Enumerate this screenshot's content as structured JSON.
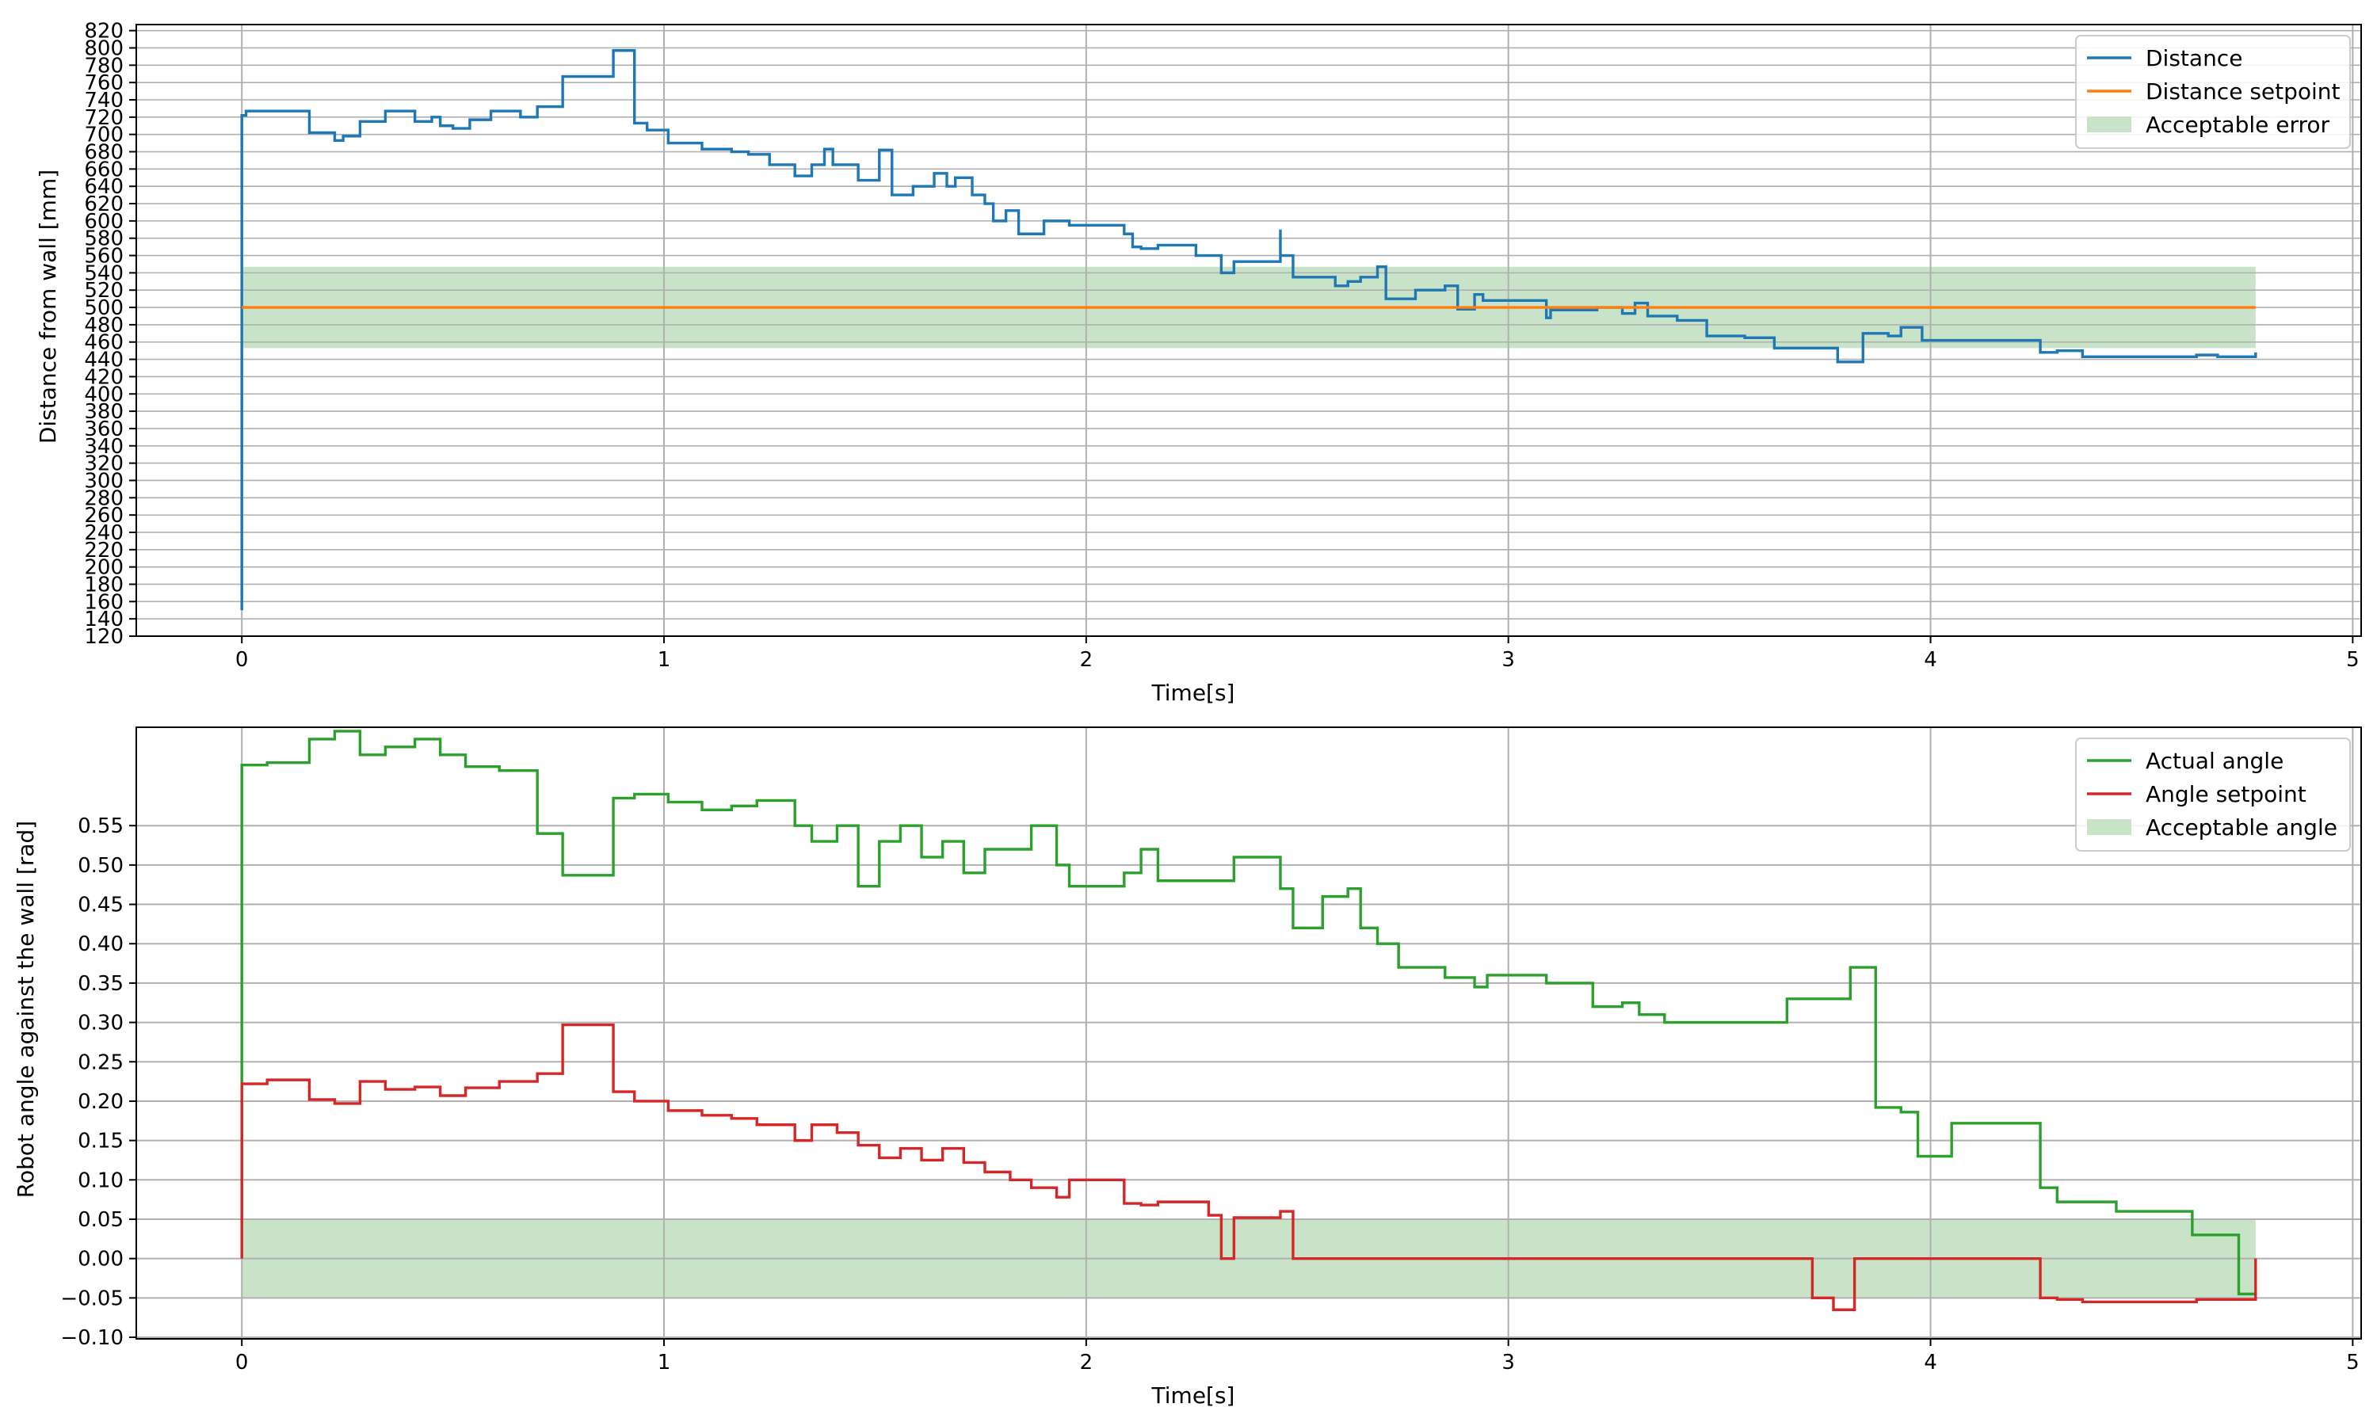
{
  "chart_data": [
    {
      "type": "line",
      "xlabel": "Time[s]",
      "ylabel": "Distance from wall [mm]",
      "xlim": [
        -0.25,
        5.02
      ],
      "ylim": [
        120,
        827
      ],
      "x_ticks": [
        0,
        1,
        2,
        3,
        4,
        5
      ],
      "y_ticks": [
        120,
        140,
        160,
        180,
        200,
        220,
        240,
        260,
        280,
        300,
        320,
        340,
        360,
        380,
        400,
        420,
        440,
        460,
        480,
        500,
        520,
        540,
        560,
        580,
        600,
        620,
        640,
        660,
        680,
        700,
        720,
        740,
        760,
        780,
        800,
        820
      ],
      "grid": true,
      "legend_position": "upper right",
      "band": {
        "name": "Acceptable error",
        "color": "#c9e3c9",
        "x": [
          0,
          4.77
        ],
        "y": [
          453,
          547
        ]
      },
      "series": [
        {
          "name": "Distance",
          "color": "#1f77b4",
          "step": true,
          "x": [
            0,
            0,
            0.01,
            0.06,
            0.16,
            0.22,
            0.24,
            0.28,
            0.34,
            0.41,
            0.45,
            0.47,
            0.5,
            0.54,
            0.59,
            0.66,
            0.7,
            0.76,
            0.88,
            0.93,
            0.96,
            1.01,
            1.09,
            1.16,
            1.2,
            1.25,
            1.31,
            1.35,
            1.38,
            1.4,
            1.46,
            1.51,
            1.54,
            1.59,
            1.64,
            1.67,
            1.69,
            1.73,
            1.76,
            1.78,
            1.81,
            1.84,
            1.9,
            1.93,
            1.96,
            2.09,
            2.11,
            2.13,
            2.17,
            2.26,
            2.32,
            2.35,
            2.46,
            2.46,
            2.49,
            2.59,
            2.62,
            2.65,
            2.69,
            2.71,
            2.78,
            2.85,
            2.88,
            2.92,
            2.94,
            3.09,
            3.1,
            3.21,
            3.27,
            3.3,
            3.33,
            3.4,
            3.47,
            3.56,
            3.63,
            3.78,
            3.84,
            3.9,
            3.93,
            3.98,
            4.05,
            4.26,
            4.3,
            4.36,
            4.55,
            4.63,
            4.68,
            4.77
          ],
          "y": [
            150,
            722,
            727,
            727,
            702,
            693,
            698,
            715,
            727,
            715,
            720,
            710,
            707,
            717,
            727,
            720,
            732,
            767,
            797,
            713,
            705,
            690,
            683,
            680,
            677,
            665,
            652,
            665,
            683,
            665,
            647,
            682,
            630,
            640,
            655,
            640,
            650,
            630,
            620,
            600,
            612,
            585,
            600,
            600,
            595,
            585,
            570,
            568,
            572,
            560,
            540,
            553,
            590,
            560,
            535,
            525,
            530,
            535,
            547,
            510,
            520,
            525,
            498,
            515,
            508,
            488,
            497,
            500,
            493,
            505,
            490,
            485,
            467,
            465,
            453,
            437,
            470,
            467,
            477,
            462,
            462,
            448,
            450,
            443,
            443,
            445,
            443,
            448
          ]
        },
        {
          "name": "Distance setpoint",
          "color": "#ff7f0e",
          "step": false,
          "x": [
            0,
            4.77
          ],
          "y": [
            500,
            500
          ]
        }
      ]
    },
    {
      "type": "line",
      "xlabel": "Time[s]",
      "ylabel": "Robot angle against the wall [rad]",
      "xlim": [
        -0.25,
        5.02
      ],
      "ylim": [
        -0.102,
        0.675
      ],
      "x_ticks": [
        0,
        1,
        2,
        3,
        4,
        5
      ],
      "y_ticks": [
        -0.1,
        -0.05,
        0,
        0.05,
        0.1,
        0.15,
        0.2,
        0.25,
        0.3,
        0.35,
        0.4,
        0.45,
        0.5,
        0.55
      ],
      "y_tick_labels": [
        "−0.10",
        "−0.05",
        "0.00",
        "0.05",
        "0.10",
        "0.15",
        "0.20",
        "0.25",
        "0.30",
        "0.35",
        "0.40",
        "0.45",
        "0.50",
        "0.55"
      ],
      "grid": true,
      "legend_position": "upper right",
      "band": {
        "name": "Acceptable angle",
        "color": "#c9e3c9",
        "x": [
          0,
          4.77
        ],
        "y": [
          -0.05,
          0.05
        ]
      },
      "series": [
        {
          "name": "Actual angle",
          "color": "#2ca02c",
          "step": true,
          "x": [
            0,
            0,
            0.06,
            0.16,
            0.22,
            0.28,
            0.34,
            0.41,
            0.47,
            0.53,
            0.61,
            0.7,
            0.76,
            0.88,
            0.93,
            1.01,
            1.09,
            1.16,
            1.22,
            1.31,
            1.35,
            1.41,
            1.46,
            1.51,
            1.56,
            1.61,
            1.66,
            1.71,
            1.76,
            1.82,
            1.87,
            1.93,
            1.96,
            2.09,
            2.13,
            2.17,
            2.29,
            2.35,
            2.46,
            2.49,
            2.56,
            2.62,
            2.65,
            2.69,
            2.74,
            2.78,
            2.85,
            2.92,
            2.95,
            3.09,
            3.2,
            3.27,
            3.31,
            3.37,
            3.46,
            3.56,
            3.66,
            3.81,
            3.87,
            3.93,
            3.97,
            4.05,
            4.26,
            4.3,
            4.44,
            4.55,
            4.62,
            4.73,
            4.77
          ],
          "y": [
            0.0,
            0.627,
            0.63,
            0.66,
            0.67,
            0.64,
            0.65,
            0.66,
            0.64,
            0.625,
            0.62,
            0.54,
            0.487,
            0.585,
            0.59,
            0.58,
            0.57,
            0.575,
            0.582,
            0.55,
            0.53,
            0.55,
            0.473,
            0.53,
            0.55,
            0.51,
            0.53,
            0.49,
            0.52,
            0.52,
            0.55,
            0.5,
            0.473,
            0.49,
            0.52,
            0.48,
            0.48,
            0.51,
            0.47,
            0.42,
            0.46,
            0.47,
            0.42,
            0.4,
            0.37,
            0.37,
            0.357,
            0.345,
            0.36,
            0.35,
            0.32,
            0.325,
            0.31,
            0.3,
            0.3,
            0.3,
            0.33,
            0.37,
            0.192,
            0.186,
            0.13,
            0.172,
            0.09,
            0.072,
            0.06,
            0.06,
            0.03,
            -0.045,
            -0.045
          ]
        },
        {
          "name": "Angle setpoint",
          "color": "#d62728",
          "step": true,
          "x": [
            0,
            0,
            0.06,
            0.16,
            0.22,
            0.28,
            0.34,
            0.41,
            0.47,
            0.53,
            0.61,
            0.7,
            0.76,
            0.88,
            0.93,
            1.01,
            1.09,
            1.16,
            1.22,
            1.31,
            1.35,
            1.41,
            1.46,
            1.51,
            1.56,
            1.61,
            1.66,
            1.71,
            1.76,
            1.82,
            1.87,
            1.93,
            1.96,
            2.09,
            2.13,
            2.17,
            2.29,
            2.32,
            2.35,
            2.46,
            2.49,
            2.59,
            3.72,
            3.77,
            3.82,
            3.9,
            4.26,
            4.3,
            4.36,
            4.55,
            4.63,
            4.68,
            4.77
          ],
          "y": [
            0.0,
            0.222,
            0.227,
            0.202,
            0.197,
            0.225,
            0.215,
            0.218,
            0.207,
            0.217,
            0.225,
            0.235,
            0.297,
            0.212,
            0.2,
            0.188,
            0.182,
            0.178,
            0.17,
            0.15,
            0.17,
            0.16,
            0.144,
            0.128,
            0.14,
            0.125,
            0.14,
            0.122,
            0.11,
            0.1,
            0.09,
            0.078,
            0.1,
            0.07,
            0.068,
            0.072,
            0.055,
            0.0,
            0.052,
            0.06,
            0.0,
            0.0,
            -0.05,
            -0.065,
            0.0,
            0.0,
            -0.05,
            -0.052,
            -0.055,
            -0.055,
            -0.052,
            -0.052,
            0.0
          ]
        }
      ]
    }
  ]
}
